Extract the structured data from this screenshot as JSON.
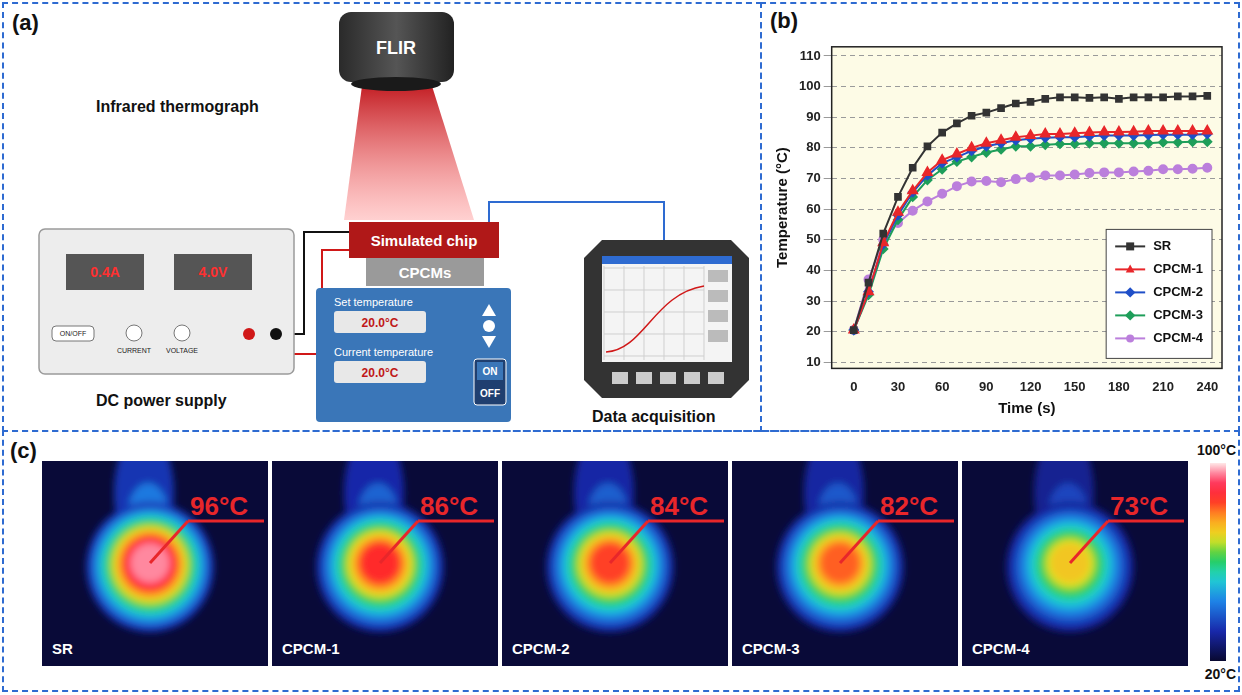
{
  "panel_a": {
    "letter": "(a)",
    "camera": {
      "label": "Infrared thermograph",
      "brand": "FLIR"
    },
    "chip": "Simulated chip",
    "material": "CPCMs",
    "power_supply": {
      "label": "DC power supply",
      "current": "0.4A",
      "voltage": "4.0V",
      "buttons": [
        "ON/OFF",
        "CURRENT",
        "VOLTAGE"
      ]
    },
    "controller": {
      "set_label": "Set temperature",
      "set_value": "20.0°C",
      "current_label": "Current temperature",
      "current_value": "20.0°C",
      "switch": [
        "ON",
        "OFF"
      ]
    },
    "data_acquisition": "Data acquisition"
  },
  "panel_b": {
    "letter": "(b)"
  },
  "chart_data": {
    "type": "line",
    "xlabel": "Time (s)",
    "ylabel": "Temperature (°C)",
    "x": [
      0,
      10,
      20,
      30,
      40,
      50,
      60,
      70,
      80,
      90,
      100,
      110,
      120,
      130,
      140,
      150,
      160,
      170,
      180,
      190,
      200,
      210,
      220,
      230,
      240
    ],
    "xlim": [
      -15,
      250
    ],
    "xticks": [
      0,
      30,
      60,
      90,
      120,
      150,
      180,
      210,
      240
    ],
    "ylim": [
      8,
      113
    ],
    "yticks": [
      10,
      20,
      30,
      40,
      50,
      60,
      70,
      80,
      90,
      100,
      110
    ],
    "grid": "y",
    "legend": "lower right",
    "series": [
      {
        "name": "SR",
        "color": "#333333",
        "marker": "square",
        "values": [
          20.5,
          36,
          52,
          64,
          73.5,
          80.5,
          85,
          88,
          90.5,
          91.5,
          93,
          94.5,
          95,
          96,
          96.5,
          96.5,
          96.3,
          96.5,
          96,
          96.5,
          96.5,
          96.5,
          96.8,
          96.8,
          97
        ]
      },
      {
        "name": "CPCM-1",
        "color": "#e8262a",
        "marker": "triangle",
        "values": [
          20.5,
          33,
          49,
          59,
          66,
          72,
          76,
          78,
          80,
          81.5,
          82.5,
          83.5,
          84,
          84.5,
          84.5,
          84.8,
          85,
          85.2,
          85.2,
          85.3,
          85.5,
          85.5,
          85.5,
          85.5,
          85.5
        ]
      },
      {
        "name": "CPCM-2",
        "color": "#1f4fc8",
        "marker": "diamond",
        "values": [
          20.5,
          33,
          48.5,
          58,
          65.5,
          71,
          75,
          77,
          79,
          80.5,
          81.5,
          82.5,
          83,
          83.3,
          83.5,
          83.5,
          83.8,
          84,
          84,
          84,
          84.2,
          84.3,
          84.3,
          84.3,
          84.5
        ]
      },
      {
        "name": "CPCM-3",
        "color": "#1e9e5a",
        "marker": "diamond",
        "values": [
          20.5,
          32,
          47,
          56.5,
          64,
          69.5,
          73,
          75.5,
          77,
          78.5,
          79.5,
          80.5,
          80.5,
          81,
          81.3,
          81.3,
          81.5,
          81.5,
          81.5,
          81.5,
          81.5,
          81.8,
          81.8,
          82,
          82
        ]
      },
      {
        "name": "CPCM-4",
        "color": "#bb7fdc",
        "marker": "circle",
        "values": [
          20.5,
          37,
          50,
          55.5,
          59.5,
          62.5,
          65,
          67.5,
          69,
          69.2,
          68.8,
          69.8,
          70.3,
          71,
          71,
          71.3,
          71.8,
          72,
          72,
          72.3,
          72.5,
          73,
          73,
          73.2,
          73.5
        ]
      }
    ]
  },
  "panel_c": {
    "letter": "(c)",
    "images": [
      {
        "name": "SR",
        "max_temp": 96,
        "label": "96°C"
      },
      {
        "name": "CPCM-1",
        "max_temp": 86,
        "label": "86°C"
      },
      {
        "name": "CPCM-2",
        "max_temp": 84,
        "label": "84°C"
      },
      {
        "name": "CPCM-3",
        "max_temp": 82,
        "label": "82°C"
      },
      {
        "name": "CPCM-4",
        "max_temp": 73,
        "label": "73°C"
      }
    ],
    "colorbar": {
      "range": [
        20,
        100
      ],
      "ticks": [
        {
          "value": 100,
          "label": "100°C"
        },
        {
          "value": 20,
          "label": "20°C"
        }
      ]
    }
  }
}
